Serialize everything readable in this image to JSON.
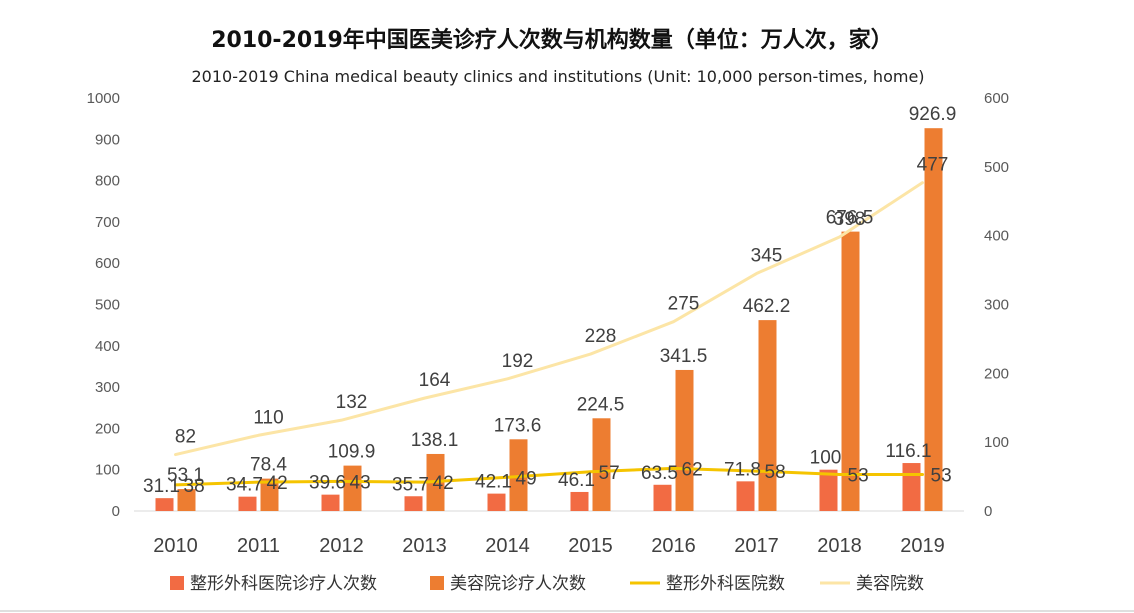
{
  "chart_data": {
    "type": "bar",
    "title": "2010-2019年中国医美诊疗人次数与机构数量（单位：万人次，家）",
    "subtitle": "2010-2019 China medical beauty clinics and institutions (Unit: 10,000 person-times, home)",
    "categories": [
      "2010",
      "2011",
      "2012",
      "2013",
      "2014",
      "2015",
      "2016",
      "2017",
      "2018",
      "2019"
    ],
    "y_left": {
      "min": 0,
      "max": 1000,
      "ticks": [
        "0",
        "100",
        "200",
        "300",
        "400",
        "500",
        "600",
        "700",
        "800",
        "900",
        "1000"
      ]
    },
    "y_right": {
      "min": 0,
      "max": 600,
      "ticks": [
        "0",
        "100",
        "200",
        "300",
        "400",
        "500",
        "600"
      ]
    },
    "grid": false,
    "legend_position": "bottom",
    "series": [
      {
        "name": "整形外科医院诊疗人次数",
        "kind": "bar",
        "axis": "left",
        "color": "#F26B43",
        "values": [
          31.1,
          34.7,
          39.6,
          35.7,
          42.1,
          46.1,
          63.5,
          71.8,
          100,
          116.1
        ],
        "labels": [
          "31.1",
          "34.7",
          "39.6",
          "35.7",
          "42.1",
          "46.1",
          "63.5",
          "71.8",
          "100",
          "116.1"
        ]
      },
      {
        "name": "美容院诊疗人次数",
        "kind": "bar",
        "axis": "left",
        "color": "#ED7D31",
        "values": [
          53.1,
          78.4,
          109.9,
          138.1,
          173.6,
          224.5,
          341.5,
          462.2,
          676.5,
          926.9
        ],
        "labels": [
          "53.1",
          "78.4",
          "109.9",
          "138.1",
          "173.6",
          "224.5",
          "341.5",
          "462.2",
          "676.5",
          "926.9"
        ]
      },
      {
        "name": "整形外科医院数",
        "kind": "line",
        "axis": "right",
        "color": "#F5C400",
        "values": [
          38,
          42,
          43,
          42,
          49,
          57,
          62,
          58,
          53,
          53
        ],
        "labels": [
          "38",
          "42",
          "43",
          "42",
          "49",
          "57",
          "62",
          "58",
          "53",
          "53"
        ]
      },
      {
        "name": "美容院数",
        "kind": "line",
        "axis": "right",
        "color": "#FCE5A6",
        "values": [
          82,
          110,
          132,
          164,
          192,
          228,
          275,
          345,
          398,
          477
        ],
        "labels": [
          "82",
          "110",
          "132",
          "164",
          "192",
          "228",
          "275",
          "345",
          "398",
          "477"
        ]
      }
    ]
  }
}
